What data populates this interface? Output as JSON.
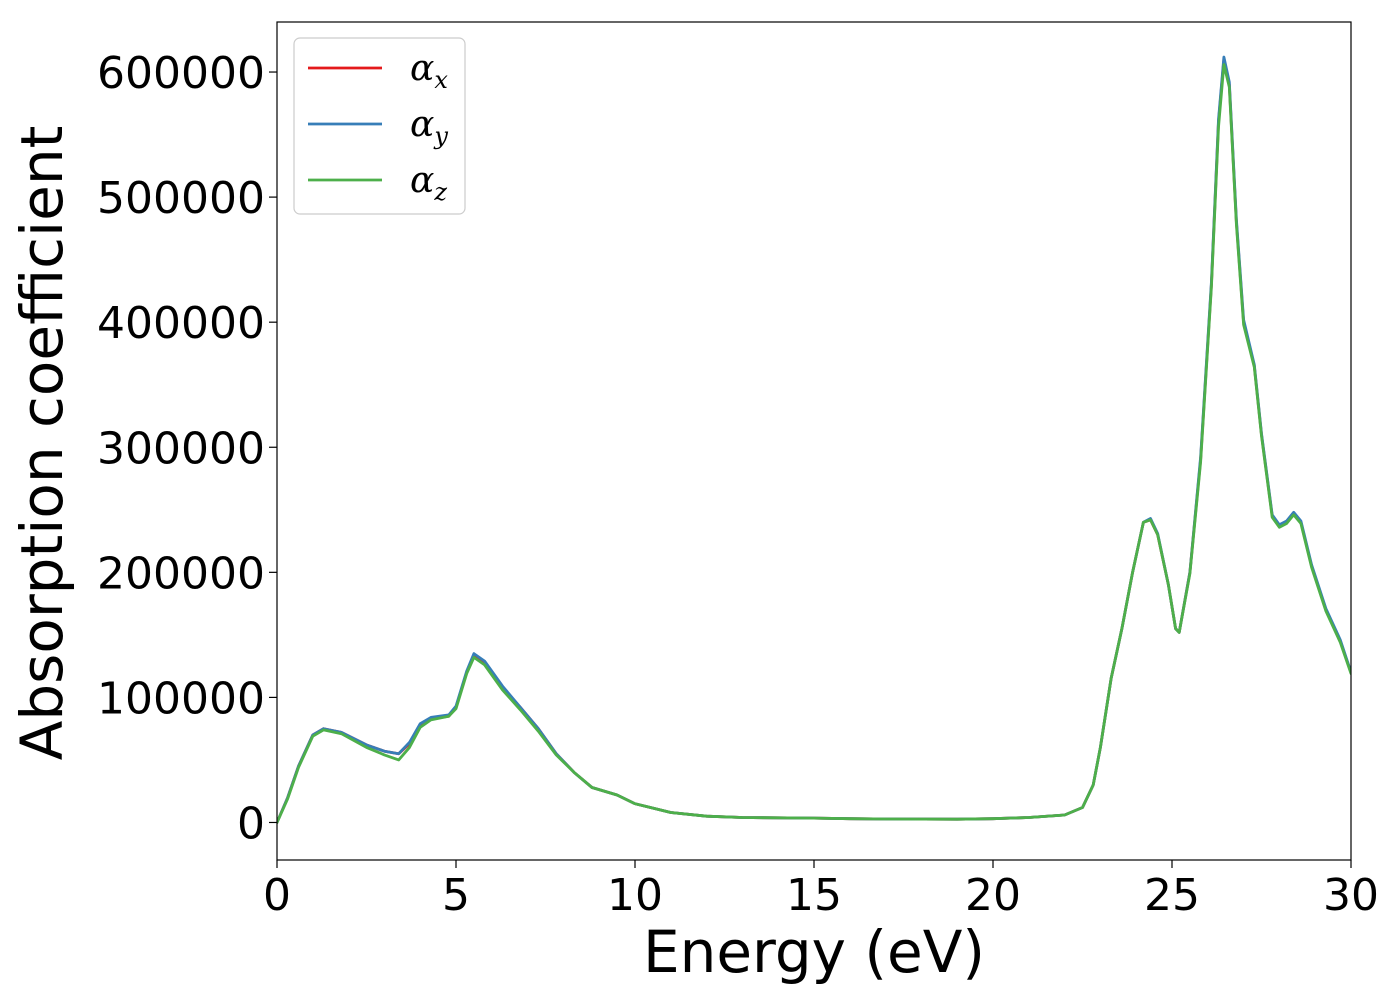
{
  "chart_data": {
    "type": "line",
    "xlabel": "Energy (eV)",
    "ylabel": "Absorption coefficient",
    "xlim": [
      0,
      30
    ],
    "ylim": [
      -30000,
      640000
    ],
    "x_ticks": [
      0,
      5,
      10,
      15,
      20,
      25,
      30
    ],
    "x_tick_labels": [
      "0",
      "5",
      "10",
      "15",
      "20",
      "25",
      "30"
    ],
    "y_ticks": [
      0,
      100000,
      200000,
      300000,
      400000,
      500000,
      600000
    ],
    "y_tick_labels": [
      "0",
      "100000",
      "200000",
      "300000",
      "400000",
      "500000",
      "600000"
    ],
    "grid": false,
    "legend_position": "top-left",
    "series": [
      {
        "name": "αx",
        "name_base": "α",
        "name_sub": "x",
        "color": "#e41a1c",
        "points": [
          [
            0,
            0
          ],
          [
            0.3,
            20000
          ],
          [
            0.6,
            45000
          ],
          [
            1.0,
            70000
          ],
          [
            1.3,
            75000
          ],
          [
            1.8,
            72000
          ],
          [
            2.5,
            62000
          ],
          [
            3.0,
            57000
          ],
          [
            3.4,
            55000
          ],
          [
            3.7,
            63000
          ],
          [
            4.0,
            78000
          ],
          [
            4.3,
            83000
          ],
          [
            4.8,
            85000
          ],
          [
            5.0,
            92000
          ],
          [
            5.3,
            120000
          ],
          [
            5.5,
            134000
          ],
          [
            5.8,
            128000
          ],
          [
            6.3,
            108000
          ],
          [
            6.8,
            92000
          ],
          [
            7.3,
            75000
          ],
          [
            7.8,
            55000
          ],
          [
            8.3,
            40000
          ],
          [
            8.8,
            28000
          ],
          [
            9.5,
            22000
          ],
          [
            10.0,
            15000
          ],
          [
            11.0,
            8000
          ],
          [
            12.0,
            5000
          ],
          [
            13.0,
            4000
          ],
          [
            15.0,
            3500
          ],
          [
            16.0,
            3000
          ],
          [
            17.0,
            2800
          ],
          [
            19.0,
            2600
          ],
          [
            20.0,
            3000
          ],
          [
            21.0,
            4000
          ],
          [
            22.0,
            6000
          ],
          [
            22.5,
            12000
          ],
          [
            22.8,
            30000
          ],
          [
            23.0,
            60000
          ],
          [
            23.3,
            115000
          ],
          [
            23.6,
            155000
          ],
          [
            23.9,
            200000
          ],
          [
            24.2,
            240000
          ],
          [
            24.4,
            242000
          ],
          [
            24.6,
            230000
          ],
          [
            24.9,
            190000
          ],
          [
            25.1,
            155000
          ],
          [
            25.2,
            152000
          ],
          [
            25.5,
            200000
          ],
          [
            25.8,
            290000
          ],
          [
            26.1,
            430000
          ],
          [
            26.3,
            560000
          ],
          [
            26.45,
            610000
          ],
          [
            26.6,
            590000
          ],
          [
            26.8,
            480000
          ],
          [
            27.0,
            400000
          ],
          [
            27.3,
            365000
          ],
          [
            27.5,
            310000
          ],
          [
            27.8,
            245000
          ],
          [
            28.0,
            237000
          ],
          [
            28.2,
            240000
          ],
          [
            28.4,
            247000
          ],
          [
            28.6,
            240000
          ],
          [
            28.9,
            205000
          ],
          [
            29.3,
            170000
          ],
          [
            29.7,
            145000
          ],
          [
            30.0,
            120000
          ]
        ]
      },
      {
        "name": "αy",
        "name_base": "α",
        "name_sub": "y",
        "color": "#377eb8",
        "points": [
          [
            0,
            0
          ],
          [
            0.3,
            20000
          ],
          [
            0.6,
            45000
          ],
          [
            1.0,
            70000
          ],
          [
            1.3,
            75000
          ],
          [
            1.8,
            72000
          ],
          [
            2.5,
            62000
          ],
          [
            3.0,
            57000
          ],
          [
            3.4,
            55000
          ],
          [
            3.7,
            64000
          ],
          [
            4.0,
            79000
          ],
          [
            4.3,
            84000
          ],
          [
            4.8,
            86000
          ],
          [
            5.0,
            93000
          ],
          [
            5.3,
            121000
          ],
          [
            5.5,
            135000
          ],
          [
            5.8,
            129000
          ],
          [
            6.3,
            109000
          ],
          [
            6.8,
            92000
          ],
          [
            7.3,
            75000
          ],
          [
            7.8,
            55000
          ],
          [
            8.3,
            40000
          ],
          [
            8.8,
            28000
          ],
          [
            9.5,
            22000
          ],
          [
            10.0,
            15000
          ],
          [
            11.0,
            8000
          ],
          [
            12.0,
            5000
          ],
          [
            13.0,
            4000
          ],
          [
            15.0,
            3500
          ],
          [
            16.0,
            3000
          ],
          [
            17.0,
            2800
          ],
          [
            19.0,
            2600
          ],
          [
            20.0,
            3000
          ],
          [
            21.0,
            4000
          ],
          [
            22.0,
            6000
          ],
          [
            22.5,
            12000
          ],
          [
            22.8,
            30000
          ],
          [
            23.0,
            60000
          ],
          [
            23.3,
            115000
          ],
          [
            23.6,
            155000
          ],
          [
            23.9,
            200000
          ],
          [
            24.2,
            240000
          ],
          [
            24.4,
            243000
          ],
          [
            24.6,
            231000
          ],
          [
            24.9,
            190000
          ],
          [
            25.1,
            155000
          ],
          [
            25.2,
            152000
          ],
          [
            25.5,
            200000
          ],
          [
            25.8,
            292000
          ],
          [
            26.1,
            432000
          ],
          [
            26.3,
            562000
          ],
          [
            26.45,
            612000
          ],
          [
            26.6,
            592000
          ],
          [
            26.8,
            482000
          ],
          [
            27.0,
            402000
          ],
          [
            27.3,
            366000
          ],
          [
            27.5,
            311000
          ],
          [
            27.8,
            246000
          ],
          [
            28.0,
            238000
          ],
          [
            28.2,
            241000
          ],
          [
            28.4,
            248000
          ],
          [
            28.6,
            241000
          ],
          [
            28.9,
            206000
          ],
          [
            29.3,
            171000
          ],
          [
            29.7,
            146000
          ],
          [
            30.0,
            120000
          ]
        ]
      },
      {
        "name": "αz",
        "name_base": "α",
        "name_sub": "z",
        "color": "#4daf4a",
        "points": [
          [
            0,
            0
          ],
          [
            0.3,
            19000
          ],
          [
            0.6,
            44000
          ],
          [
            1.0,
            69000
          ],
          [
            1.3,
            74000
          ],
          [
            1.8,
            71000
          ],
          [
            2.5,
            60000
          ],
          [
            3.0,
            54000
          ],
          [
            3.4,
            50000
          ],
          [
            3.7,
            60000
          ],
          [
            4.0,
            76000
          ],
          [
            4.3,
            82000
          ],
          [
            4.8,
            85000
          ],
          [
            5.0,
            91000
          ],
          [
            5.3,
            119000
          ],
          [
            5.5,
            132000
          ],
          [
            5.8,
            126000
          ],
          [
            6.3,
            106000
          ],
          [
            6.8,
            90000
          ],
          [
            7.3,
            73000
          ],
          [
            7.8,
            54000
          ],
          [
            8.3,
            40000
          ],
          [
            8.8,
            28000
          ],
          [
            9.5,
            22000
          ],
          [
            10.0,
            15000
          ],
          [
            11.0,
            8000
          ],
          [
            12.0,
            5000
          ],
          [
            13.0,
            4000
          ],
          [
            15.0,
            3500
          ],
          [
            16.0,
            3000
          ],
          [
            17.0,
            2800
          ],
          [
            19.0,
            2600
          ],
          [
            20.0,
            3000
          ],
          [
            21.0,
            4000
          ],
          [
            22.0,
            6000
          ],
          [
            22.5,
            12000
          ],
          [
            22.8,
            30000
          ],
          [
            23.0,
            60000
          ],
          [
            23.3,
            115000
          ],
          [
            23.6,
            155000
          ],
          [
            23.9,
            200000
          ],
          [
            24.2,
            240000
          ],
          [
            24.4,
            242000
          ],
          [
            24.6,
            230000
          ],
          [
            24.9,
            190000
          ],
          [
            25.1,
            155000
          ],
          [
            25.2,
            152000
          ],
          [
            25.5,
            199000
          ],
          [
            25.8,
            288000
          ],
          [
            26.1,
            428000
          ],
          [
            26.3,
            556000
          ],
          [
            26.45,
            606000
          ],
          [
            26.6,
            588000
          ],
          [
            26.8,
            478000
          ],
          [
            27.0,
            398000
          ],
          [
            27.3,
            364000
          ],
          [
            27.5,
            309000
          ],
          [
            27.8,
            244000
          ],
          [
            28.0,
            236000
          ],
          [
            28.2,
            239000
          ],
          [
            28.4,
            246000
          ],
          [
            28.6,
            239000
          ],
          [
            28.9,
            204000
          ],
          [
            29.3,
            169000
          ],
          [
            29.7,
            144000
          ],
          [
            30.0,
            119000
          ]
        ]
      }
    ]
  }
}
